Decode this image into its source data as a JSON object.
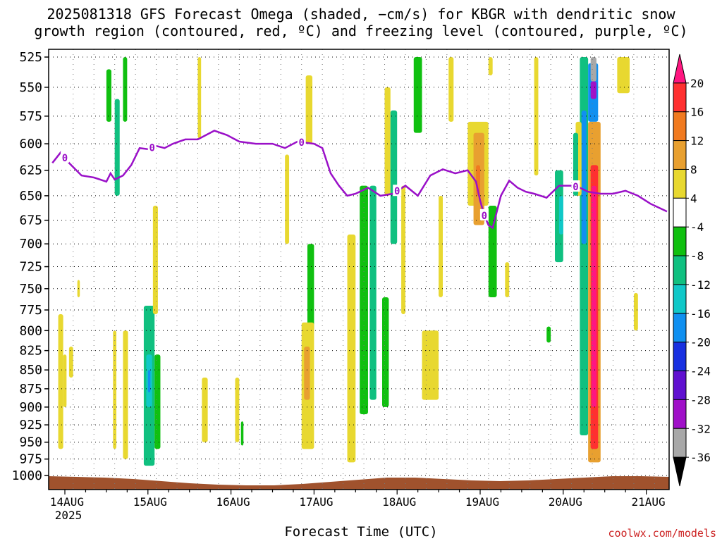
{
  "title_line1": "2025081318 GFS Forecast Omega (shaded, −cm/s) for KBGR with dendritic snow",
  "title_line2": "growth region (contoured, red, ºC) and freezing level (contoured, purple, ºC)",
  "credit": "coolwx.com/models",
  "chart_data": {
    "type": "heatmap",
    "xlabel": "Forecast Time (UTC)",
    "ylabel": "",
    "x_ticks": [
      "14AUG",
      "15AUG",
      "16AUG",
      "17AUG",
      "18AUG",
      "19AUG",
      "20AUG",
      "21AUG"
    ],
    "x_year_label": "2025",
    "y_ticks": [
      525,
      550,
      575,
      600,
      625,
      650,
      675,
      700,
      725,
      750,
      775,
      800,
      825,
      850,
      875,
      900,
      925,
      950,
      975,
      1000
    ],
    "ylim": [
      525,
      1000
    ],
    "x_range_days": [
      13.85,
      21.25
    ],
    "y_log_scale": true,
    "grid": true,
    "colorbar": {
      "labels": [
        20,
        16,
        12,
        8,
        4,
        -4,
        -8,
        -12,
        -16,
        -20,
        -24,
        -28,
        -32,
        -36
      ],
      "colors": [
        "#ff1680",
        "#ff3030",
        "#f07a20",
        "#e8a030",
        "#e8d830",
        "#ffffff",
        "#10c010",
        "#10c080",
        "#10c8c8",
        "#1090f0",
        "#1830e0",
        "#6010d0",
        "#a010c8",
        "#a8a8a8",
        "#000000"
      ]
    },
    "freezing_level": {
      "contour_label": "0",
      "color": "#9a10c8",
      "x": [
        13.85,
        13.95,
        14.05,
        14.2,
        14.35,
        14.5,
        14.55,
        14.6,
        14.7,
        14.8,
        14.9,
        15.0,
        15.1,
        15.2,
        15.3,
        15.45,
        15.6,
        15.8,
        15.95,
        16.1,
        16.3,
        16.5,
        16.65,
        16.8,
        17.0,
        17.1,
        17.2,
        17.3,
        17.4,
        17.5,
        17.65,
        17.8,
        17.95,
        18.1,
        18.25,
        18.4,
        18.55,
        18.7,
        18.85,
        18.95,
        19.0,
        19.05,
        19.1,
        19.15,
        19.25,
        19.35,
        19.45,
        19.55,
        19.65,
        19.8,
        19.95,
        20.1,
        20.2,
        20.3,
        20.45,
        20.6,
        20.75,
        20.9,
        21.05,
        21.15,
        21.25
      ],
      "y": [
        618,
        608,
        618,
        630,
        632,
        636,
        628,
        634,
        630,
        620,
        604,
        605,
        602,
        604,
        600,
        596,
        596,
        588,
        592,
        598,
        600,
        600,
        604,
        598,
        600,
        604,
        628,
        640,
        650,
        648,
        642,
        650,
        648,
        640,
        650,
        630,
        624,
        628,
        625,
        636,
        655,
        670,
        680,
        683,
        650,
        635,
        642,
        646,
        648,
        652,
        640,
        640,
        642,
        646,
        648,
        648,
        645,
        650,
        658,
        662,
        666
      ]
    },
    "omega_cells": [
      {
        "x": [
          13.92,
          13.98
        ],
        "y": [
          780,
          960
        ],
        "v": 5
      },
      {
        "x": [
          13.98,
          14.02
        ],
        "y": [
          830,
          900
        ],
        "v": 7
      },
      {
        "x": [
          14.05,
          14.1
        ],
        "y": [
          820,
          860
        ],
        "v": 4
      },
      {
        "x": [
          14.15,
          14.18
        ],
        "y": [
          740,
          760
        ],
        "v": 4
      },
      {
        "x": [
          14.5,
          14.56
        ],
        "y": [
          535,
          580
        ],
        "v": -7
      },
      {
        "x": [
          14.6,
          14.66
        ],
        "y": [
          560,
          650
        ],
        "v": -9
      },
      {
        "x": [
          14.7,
          14.75
        ],
        "y": [
          525,
          580
        ],
        "v": -8
      },
      {
        "x": [
          15.6,
          15.64
        ],
        "y": [
          525,
          595
        ],
        "v": 5
      },
      {
        "x": [
          14.95,
          15.08
        ],
        "y": [
          770,
          985
        ],
        "v": -9
      },
      {
        "x": [
          14.98,
          15.05
        ],
        "y": [
          830,
          900
        ],
        "v": -14
      },
      {
        "x": [
          15.0,
          15.03
        ],
        "y": [
          850,
          880
        ],
        "v": -18
      },
      {
        "x": [
          15.08,
          15.15
        ],
        "y": [
          830,
          960
        ],
        "v": -8
      },
      {
        "x": [
          15.06,
          15.12
        ],
        "y": [
          660,
          780
        ],
        "v": 5
      },
      {
        "x": [
          15.08,
          15.1
        ],
        "y": [
          690,
          720
        ],
        "v": 7
      },
      {
        "x": [
          14.7,
          14.76
        ],
        "y": [
          800,
          975
        ],
        "v": 4
      },
      {
        "x": [
          14.58,
          14.62
        ],
        "y": [
          800,
          960
        ],
        "v": 4
      },
      {
        "x": [
          15.65,
          15.72
        ],
        "y": [
          860,
          950
        ],
        "v": 4
      },
      {
        "x": [
          16.05,
          16.1
        ],
        "y": [
          860,
          950
        ],
        "v": 4
      },
      {
        "x": [
          16.12,
          16.15
        ],
        "y": [
          920,
          955
        ],
        "v": -7
      },
      {
        "x": [
          16.65,
          16.7
        ],
        "y": [
          610,
          700
        ],
        "v": 4
      },
      {
        "x": [
          16.9,
          16.98
        ],
        "y": [
          540,
          600
        ],
        "v": 4
      },
      {
        "x": [
          16.92,
          17.0
        ],
        "y": [
          700,
          800
        ],
        "v": -7
      },
      {
        "x": [
          16.85,
          17.0
        ],
        "y": [
          790,
          960
        ],
        "v": 5
      },
      {
        "x": [
          16.88,
          16.95
        ],
        "y": [
          820,
          890
        ],
        "v": 8
      },
      {
        "x": [
          17.55,
          17.65
        ],
        "y": [
          640,
          910
        ],
        "v": -7
      },
      {
        "x": [
          17.4,
          17.5
        ],
        "y": [
          690,
          980
        ],
        "v": 4
      },
      {
        "x": [
          17.67,
          17.75
        ],
        "y": [
          640,
          890
        ],
        "v": -10
      },
      {
        "x": [
          17.85,
          17.92
        ],
        "y": [
          550,
          650
        ],
        "v": 4
      },
      {
        "x": [
          17.82,
          17.9
        ],
        "y": [
          760,
          900
        ],
        "v": -7
      },
      {
        "x": [
          17.92,
          18.0
        ],
        "y": [
          570,
          700
        ],
        "v": -9
      },
      {
        "x": [
          18.05,
          18.1
        ],
        "y": [
          640,
          780
        ],
        "v": 4
      },
      {
        "x": [
          18.2,
          18.3
        ],
        "y": [
          525,
          590
        ],
        "v": -7
      },
      {
        "x": [
          18.3,
          18.5
        ],
        "y": [
          800,
          890
        ],
        "v": 4
      },
      {
        "x": [
          18.5,
          18.55
        ],
        "y": [
          650,
          760
        ],
        "v": 4
      },
      {
        "x": [
          18.62,
          18.68
        ],
        "y": [
          525,
          580
        ],
        "v": 4
      },
      {
        "x": [
          18.85,
          19.1
        ],
        "y": [
          580,
          660
        ],
        "v": 5
      },
      {
        "x": [
          18.92,
          19.05
        ],
        "y": [
          590,
          680
        ],
        "v": 10
      },
      {
        "x": [
          18.95,
          19.0
        ],
        "y": [
          620,
          650
        ],
        "v": 12
      },
      {
        "x": [
          19.1,
          19.2
        ],
        "y": [
          660,
          760
        ],
        "v": -7
      },
      {
        "x": [
          19.1,
          19.15
        ],
        "y": [
          525,
          540
        ],
        "v": 5
      },
      {
        "x": [
          19.3,
          19.35
        ],
        "y": [
          720,
          760
        ],
        "v": 4
      },
      {
        "x": [
          19.65,
          19.7
        ],
        "y": [
          525,
          630
        ],
        "v": 5
      },
      {
        "x": [
          19.8,
          19.85
        ],
        "y": [
          795,
          815
        ],
        "v": -7
      },
      {
        "x": [
          19.9,
          20.0
        ],
        "y": [
          625,
          720
        ],
        "v": -11
      },
      {
        "x": [
          19.95,
          20.0
        ],
        "y": [
          650,
          690
        ],
        "v": -16
      },
      {
        "x": [
          20.2,
          20.3
        ],
        "y": [
          525,
          940
        ],
        "v": -12
      },
      {
        "x": [
          20.22,
          20.28
        ],
        "y": [
          570,
          700
        ],
        "v": -18
      },
      {
        "x": [
          20.3,
          20.42
        ],
        "y": [
          530,
          580
        ],
        "v": -20
      },
      {
        "x": [
          20.33,
          20.4
        ],
        "y": [
          525,
          545
        ],
        "v": -36
      },
      {
        "x": [
          20.33,
          20.4
        ],
        "y": [
          545,
          560
        ],
        "v": -32
      },
      {
        "x": [
          20.3,
          20.45
        ],
        "y": [
          580,
          980
        ],
        "v": 8
      },
      {
        "x": [
          20.33,
          20.42
        ],
        "y": [
          620,
          960
        ],
        "v": 16
      },
      {
        "x": [
          20.34,
          20.4
        ],
        "y": [
          640,
          900
        ],
        "v": 20
      },
      {
        "x": [
          20.15,
          20.22
        ],
        "y": [
          580,
          650
        ],
        "v": 5
      },
      {
        "x": [
          20.12,
          20.18
        ],
        "y": [
          590,
          650
        ],
        "v": -9
      },
      {
        "x": [
          20.65,
          20.8
        ],
        "y": [
          525,
          555
        ],
        "v": 5
      },
      {
        "x": [
          20.85,
          20.9
        ],
        "y": [
          755,
          800
        ],
        "v": 4
      }
    ]
  }
}
